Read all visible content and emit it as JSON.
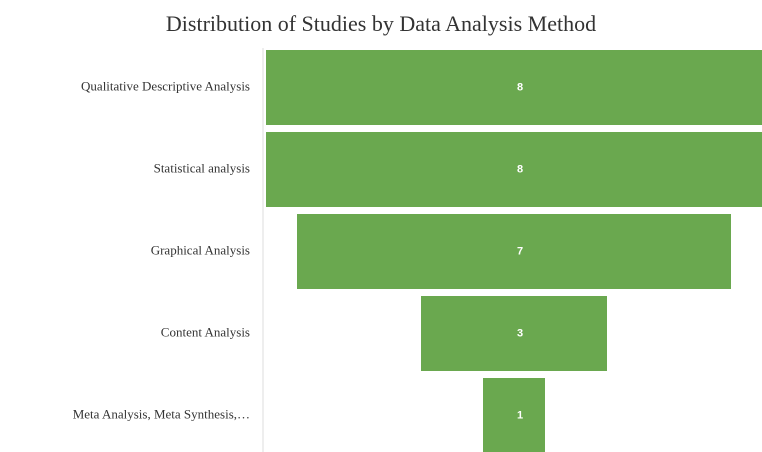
{
  "chart_data": {
    "type": "funnel",
    "title": "Distribution of Studies by Data Analysis Method",
    "categories": [
      "Qualitative Descriptive Analysis",
      "Statistical analysis",
      "Graphical Analysis",
      "Content Analysis",
      "Meta Analysis, Meta Synthesis,…"
    ],
    "values": [
      8,
      8,
      7,
      3,
      1
    ],
    "color": "#6aa84f"
  }
}
